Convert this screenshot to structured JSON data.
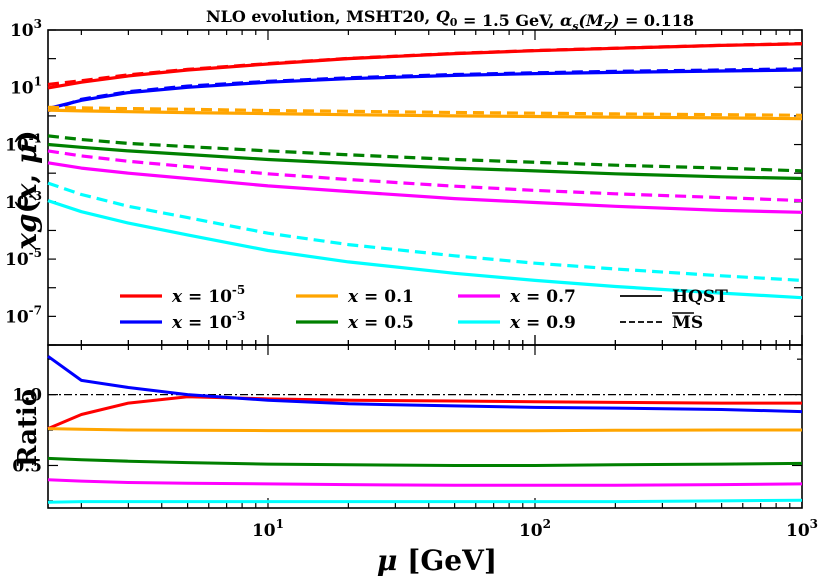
{
  "chart_data": {
    "type": "line",
    "title": "NLO evolution, MSHT20, Q_0 = 1.5 GeV, α_s(M_Z) = 0.118",
    "xlabel": "μ [GeV]",
    "x_scale": "log",
    "xlim": [
      1.5,
      1000
    ],
    "x_ticks": [
      {
        "value": 10,
        "label": "10^1"
      },
      {
        "value": 100,
        "label": "10^2"
      },
      {
        "value": 1000,
        "label": "10^3"
      }
    ],
    "mu_grid": [
      1.5,
      2,
      3,
      5,
      10,
      20,
      50,
      100,
      200,
      500,
      1000
    ],
    "colors": {
      "x=1e-5": "#ff0000",
      "x=1e-3": "#0000ff",
      "x=0.1": "#ffa500",
      "x=0.5": "#008000",
      "x=0.7": "#ff00ff",
      "x=0.9": "#00ffff",
      "reference": "#000000"
    },
    "panels": [
      {
        "id": "top",
        "ylabel": "xg(x, μ)",
        "y_scale": "log",
        "ylim": [
          1e-08,
          1000
        ],
        "y_ticks": [
          {
            "value": 1000,
            "label": "10^3"
          },
          {
            "value": 10,
            "label": "10^1"
          },
          {
            "value": 0.1,
            "label": "10^-1"
          },
          {
            "value": 0.001,
            "label": "10^-3"
          },
          {
            "value": 1e-05,
            "label": "10^-5"
          },
          {
            "value": 1e-07,
            "label": "10^-7"
          }
        ],
        "series": [
          {
            "name": "x = 10^-5 HQST",
            "color_key": "x=1e-5",
            "dash": "solid",
            "values": [
              9.5,
              15,
              25,
              40,
              65,
              100,
              150,
              190,
              230,
              290,
              330
            ]
          },
          {
            "name": "x = 10^-5 MSbar",
            "color_key": "x=1e-5",
            "dash": "dashed",
            "values": [
              12.5,
              17,
              27,
              42,
              67,
              102,
              152,
              192,
              232,
              292,
              335
            ]
          },
          {
            "name": "x = 10^-3 HQST",
            "color_key": "x=1e-3",
            "dash": "solid",
            "values": [
              1.8,
              3.5,
              6.5,
              10,
              15,
              20,
              26,
              30,
              33,
              37,
              40
            ]
          },
          {
            "name": "x = 10^-3 MSbar",
            "color_key": "x=1e-3",
            "dash": "dashed",
            "values": [
              1.5,
              3.8,
              7,
              11,
              16,
              21.5,
              28,
              32,
              36,
              40,
              44
            ]
          },
          {
            "name": "x = 0.1 HQST",
            "color_key": "x=0.1",
            "dash": "solid",
            "values": [
              1.6,
              1.5,
              1.4,
              1.3,
              1.2,
              1.1,
              1.0,
              0.95,
              0.9,
              0.85,
              0.8
            ]
          },
          {
            "name": "x = 0.1 MSbar",
            "color_key": "x=0.1",
            "dash": "dashed",
            "values": [
              2.0,
              1.9,
              1.8,
              1.7,
              1.55,
              1.45,
              1.32,
              1.24,
              1.18,
              1.1,
              1.05
            ]
          },
          {
            "name": "x = 0.5 HQST",
            "color_key": "x=0.5",
            "dash": "solid",
            "values": [
              0.1,
              0.08,
              0.06,
              0.045,
              0.03,
              0.022,
              0.015,
              0.012,
              0.0095,
              0.0075,
              0.0065
            ]
          },
          {
            "name": "x = 0.5 MSbar",
            "color_key": "x=0.5",
            "dash": "dashed",
            "values": [
              0.2,
              0.15,
              0.11,
              0.085,
              0.06,
              0.044,
              0.03,
              0.024,
              0.019,
              0.015,
              0.012
            ]
          },
          {
            "name": "x = 0.7 HQST",
            "color_key": "x=0.7",
            "dash": "solid",
            "values": [
              0.023,
              0.015,
              0.01,
              0.0065,
              0.0036,
              0.0023,
              0.0013,
              0.00095,
              0.0007,
              0.0005,
              0.00043
            ]
          },
          {
            "name": "x = 0.7 MSbar",
            "color_key": "x=0.7",
            "dash": "dashed",
            "values": [
              0.06,
              0.04,
              0.026,
              0.017,
              0.0095,
              0.006,
              0.0035,
              0.0025,
              0.0019,
              0.0014,
              0.0011
            ]
          },
          {
            "name": "x = 0.9 HQST",
            "color_key": "x=0.9",
            "dash": "solid",
            "values": [
              0.0011,
              0.00045,
              0.00018,
              7e-05,
              2e-05,
              8e-06,
              3.2e-06,
              1.8e-06,
              1.1e-06,
              6.5e-07,
              4.5e-07
            ]
          },
          {
            "name": "x = 0.9 MSbar",
            "color_key": "x=0.9",
            "dash": "dashed",
            "values": [
              0.0045,
              0.0018,
              0.0007,
              0.00028,
              8e-05,
              3.2e-05,
              1.3e-05,
              7.2e-06,
              4.5e-06,
              2.6e-06,
              1.8e-06
            ]
          }
        ]
      },
      {
        "id": "bottom",
        "ylabel": "Ratio",
        "y_scale": "linear",
        "ylim": [
          0.2,
          1.35
        ],
        "y_ticks": [
          {
            "value": 1.0,
            "label": "1.0"
          },
          {
            "value": 0.5,
            "label": "0.5"
          }
        ],
        "reference_line": {
          "value": 1.0,
          "dash": "dashdot",
          "color_key": "reference"
        },
        "series": [
          {
            "name": "x = 10^-5 ratio",
            "color_key": "x=1e-5",
            "values": [
              0.76,
              0.86,
              0.94,
              0.985,
              0.97,
              0.96,
              0.955,
              0.95,
              0.945,
              0.94,
              0.94
            ]
          },
          {
            "name": "x = 10^-3 ratio",
            "color_key": "x=1e-3",
            "values": [
              1.27,
              1.1,
              1.05,
              1.0,
              0.96,
              0.935,
              0.92,
              0.91,
              0.905,
              0.895,
              0.88
            ]
          },
          {
            "name": "x = 0.1 ratio",
            "color_key": "x=0.1",
            "values": [
              0.76,
              0.755,
              0.75,
              0.748,
              0.746,
              0.745,
              0.745,
              0.745,
              0.748,
              0.75,
              0.75
            ]
          },
          {
            "name": "x = 0.5 ratio",
            "color_key": "x=0.5",
            "values": [
              0.55,
              0.54,
              0.53,
              0.52,
              0.51,
              0.505,
              0.5,
              0.5,
              0.505,
              0.51,
              0.515
            ]
          },
          {
            "name": "x = 0.7 ratio",
            "color_key": "x=0.7",
            "values": [
              0.4,
              0.39,
              0.38,
              0.375,
              0.37,
              0.365,
              0.36,
              0.36,
              0.36,
              0.365,
              0.37
            ]
          },
          {
            "name": "x = 0.9 ratio",
            "color_key": "x=0.9",
            "values": [
              0.24,
              0.245,
              0.245,
              0.245,
              0.245,
              0.245,
              0.245,
              0.245,
              0.245,
              0.25,
              0.255
            ]
          }
        ]
      }
    ],
    "legend": {
      "placement": "lower-left",
      "entries": [
        {
          "label": "x = 10^-5",
          "color_key": "x=1e-5",
          "dash": "solid"
        },
        {
          "label": "x = 0.1",
          "color_key": "x=0.1",
          "dash": "solid"
        },
        {
          "label": "x = 0.7",
          "color_key": "x=0.7",
          "dash": "solid"
        },
        {
          "label": "HQST",
          "color_key": "reference",
          "dash": "solid"
        },
        {
          "label": "x = 10^-3",
          "color_key": "x=1e-3",
          "dash": "solid"
        },
        {
          "label": "x = 0.5",
          "color_key": "x=0.5",
          "dash": "solid"
        },
        {
          "label": "x = 0.9",
          "color_key": "x=0.9",
          "dash": "solid"
        },
        {
          "label": "MS",
          "color_key": "reference",
          "dash": "dashed"
        }
      ]
    }
  }
}
